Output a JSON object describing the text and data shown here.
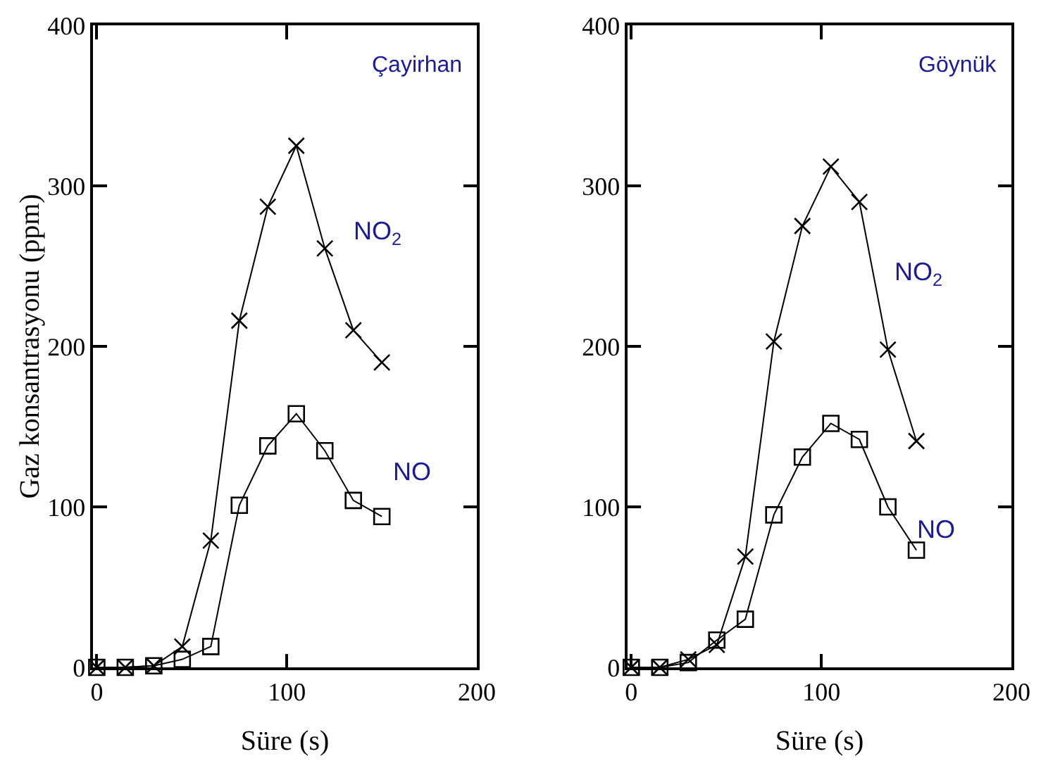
{
  "chart_data": [
    {
      "type": "line",
      "title": "Çayirhan",
      "xlabel": "Süre (s)",
      "ylabel": "Gaz konsantrasyonu (ppm)",
      "x": [
        0,
        15,
        30,
        45,
        60,
        75,
        90,
        105,
        120,
        135,
        150
      ],
      "series": [
        {
          "name": "NO$_{2}$",
          "color": "#000000",
          "marker": "cross",
          "values": [
            0,
            0,
            1,
            13,
            79,
            216,
            287,
            325,
            261,
            210,
            190
          ]
        },
        {
          "name": "NO",
          "color": "#000000",
          "marker": "square",
          "values": [
            0,
            0,
            1,
            5,
            13,
            101,
            138,
            158,
            135,
            104,
            94
          ]
        }
      ],
      "xlim": [
        -2,
        200
      ],
      "xticks": [
        0,
        100,
        200
      ],
      "ylim": [
        0,
        400
      ],
      "yticks": [
        0,
        100,
        200,
        300,
        400
      ],
      "grid": false,
      "legend": false
    },
    {
      "type": "line",
      "title": "Göynük",
      "xlabel": "Süre (s)",
      "x": [
        0,
        15,
        30,
        45,
        60,
        75,
        90,
        105,
        120,
        135,
        150
      ],
      "series": [
        {
          "name": "NO$_{2}$",
          "color": "#000000",
          "marker": "cross",
          "values": [
            0,
            0,
            5,
            14,
            69,
            203,
            275,
            312,
            290,
            198,
            141
          ]
        },
        {
          "name": "NO",
          "color": "#000000",
          "marker": "square",
          "values": [
            0,
            0,
            3,
            17,
            30,
            95,
            131,
            152,
            142,
            100,
            73
          ]
        }
      ],
      "xlim": [
        -2,
        200
      ],
      "xticks": [
        0,
        100,
        200
      ],
      "ylim": [
        0,
        400
      ],
      "yticks": [
        0,
        100,
        200,
        300,
        400
      ],
      "grid": false,
      "legend": false
    }
  ]
}
